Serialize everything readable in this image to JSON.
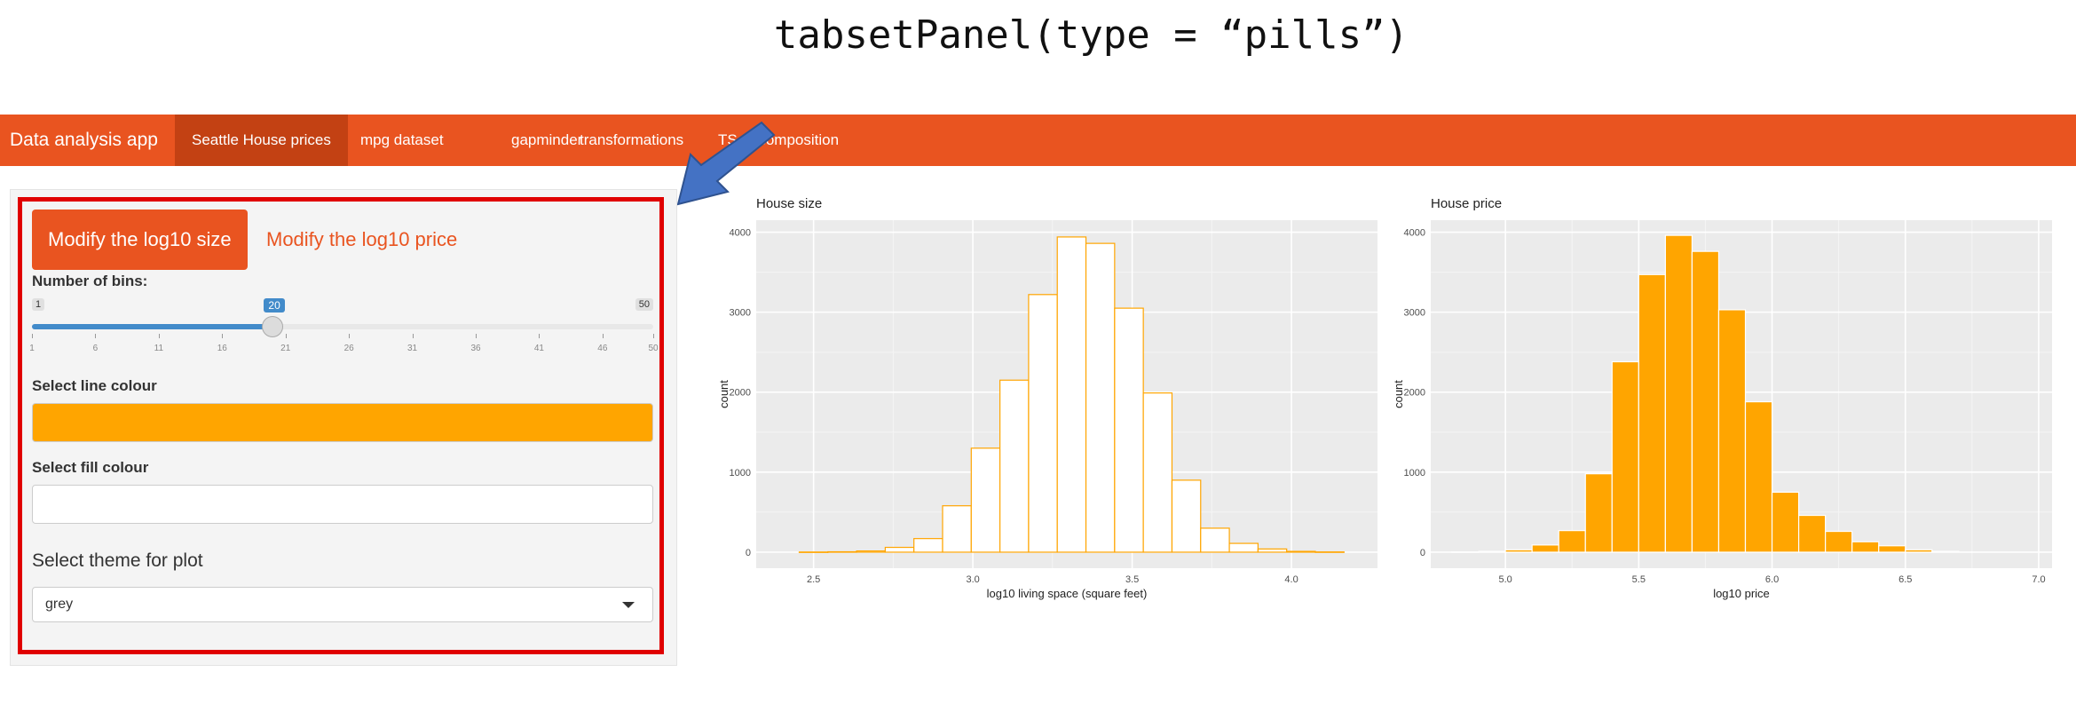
{
  "slide_title": "tabsetPanel(type = “pills”)",
  "navbar": {
    "brand": "Data analysis app",
    "tabs": [
      {
        "label": "Seattle House prices",
        "active": true
      },
      {
        "label": "mpg dataset"
      },
      {
        "label": "gapminder"
      },
      {
        "label": "transformations"
      },
      {
        "label": "TS decomposition"
      }
    ],
    "color": "#e95420",
    "active_color": "#c34113"
  },
  "sidebar": {
    "pills": [
      {
        "label": "Modify the log10 size",
        "active": true
      },
      {
        "label": "Modify the log10 price"
      }
    ],
    "bins": {
      "label": "Number of bins:",
      "min": 1,
      "max": 50,
      "value": 20,
      "ticks": [
        "1",
        "6",
        "11",
        "16",
        "21",
        "26",
        "31",
        "36",
        "41",
        "46",
        "50"
      ]
    },
    "line_colour": {
      "label": "Select line colour",
      "value": "#ffa500"
    },
    "fill_colour": {
      "label": "Select fill colour",
      "value": "#ffffff"
    },
    "theme": {
      "label": "Select theme for plot",
      "selected": "grey"
    }
  },
  "chart_data": [
    {
      "type": "bar",
      "title": "House size",
      "xlabel": "log10 living space (square feet)",
      "ylabel": "count",
      "xlim": [
        2.32,
        4.27
      ],
      "ylim": [
        -200,
        4150
      ],
      "x_ticks": [
        "2.5",
        "3.0",
        "3.5",
        "4.0"
      ],
      "y_ticks": [
        "0",
        "1000",
        "2000",
        "3000",
        "4000"
      ],
      "bin_centers": [
        2.5,
        2.59,
        2.68,
        2.77,
        2.86,
        2.95,
        3.04,
        3.13,
        3.22,
        3.31,
        3.4,
        3.49,
        3.58,
        3.67,
        3.76,
        3.85,
        3.94,
        4.03,
        4.12
      ],
      "values": [
        2,
        5,
        15,
        60,
        170,
        580,
        1300,
        2150,
        3220,
        3940,
        3860,
        3050,
        1990,
        900,
        300,
        110,
        40,
        10,
        3
      ],
      "fill": "#ffffff",
      "line": "#ffa500"
    },
    {
      "type": "bar",
      "title": "House price",
      "xlabel": "log10 price",
      "ylabel": "count",
      "xlim": [
        4.72,
        7.05
      ],
      "ylim": [
        -200,
        4150
      ],
      "x_ticks": [
        "5.0",
        "5.5",
        "6.0",
        "6.5",
        "7.0"
      ],
      "y_ticks": [
        "0",
        "1000",
        "2000",
        "3000",
        "4000"
      ],
      "bin_centers": [
        4.85,
        4.95,
        5.05,
        5.15,
        5.25,
        5.35,
        5.45,
        5.55,
        5.65,
        5.75,
        5.85,
        5.95,
        6.05,
        6.15,
        6.25,
        6.35,
        6.45,
        6.55,
        6.65
      ],
      "values": [
        3,
        10,
        30,
        90,
        270,
        980,
        2380,
        3470,
        3960,
        3760,
        3030,
        1880,
        750,
        460,
        260,
        130,
        80,
        30,
        10
      ],
      "fill": "#ffa500",
      "line": "#ffffff"
    }
  ]
}
